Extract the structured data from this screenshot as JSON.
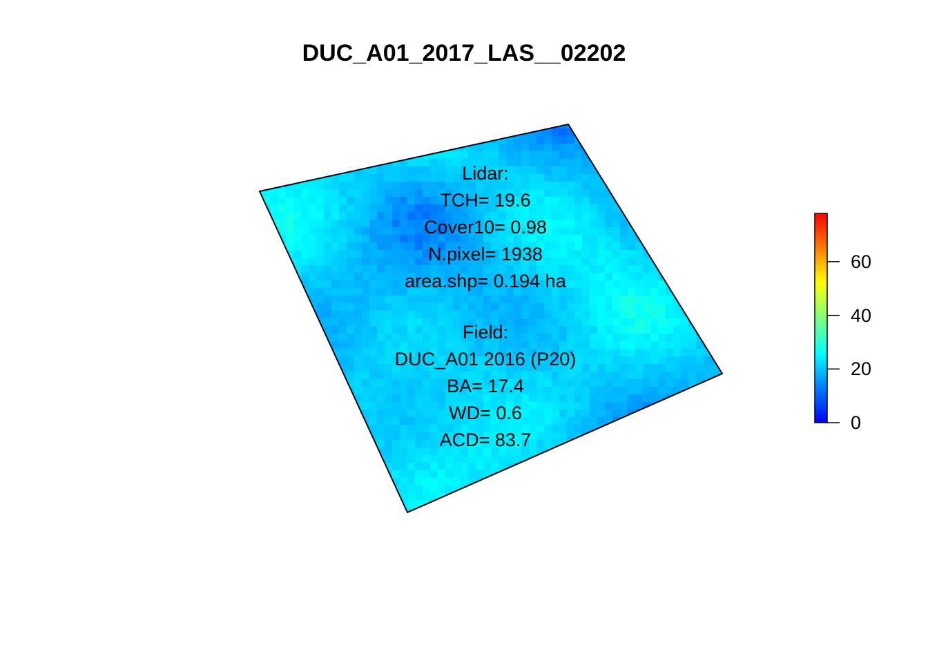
{
  "title": "DUC_A01_2017_LAS__02202",
  "annotations": {
    "lidar": [
      "Lidar:",
      "TCH= 19.6",
      "Cover10= 0.98",
      "N.pixel= 1938",
      "area.shp= 0.194 ha"
    ],
    "field": [
      "Field:",
      "DUC_A01 2016 (P20)",
      "BA= 17.4",
      "WD= 0.6",
      "ACD= 83.7"
    ]
  },
  "chart_data": {
    "type": "heatmap",
    "title": "DUC_A01_2017_LAS__02202",
    "description_values": "canopy height raster clipped to plot polygon",
    "colorscale": {
      "min": 0,
      "max": 78,
      "ticks": [
        0,
        20,
        40,
        60
      ],
      "colors": [
        "#0000ff",
        "#00a0ff",
        "#00ffff",
        "#80ff80",
        "#ffff00",
        "#ff8000",
        "#ff0000"
      ]
    },
    "value_range_observed": [
      8,
      30
    ]
  }
}
